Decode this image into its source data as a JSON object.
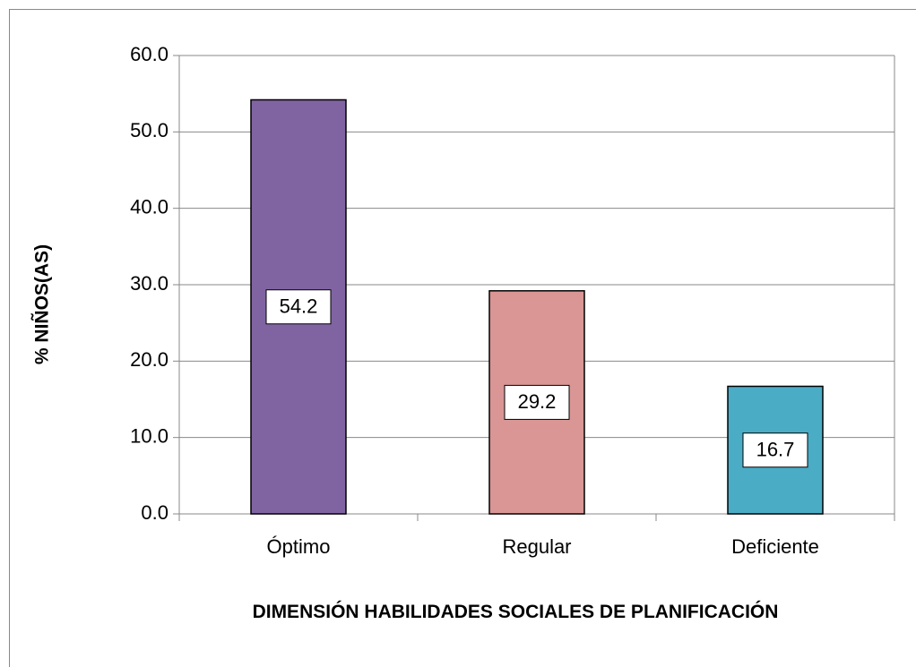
{
  "chart_data": {
    "type": "bar",
    "categories": [
      "Óptimo",
      "Regular",
      "Deficiente"
    ],
    "values": [
      54.2,
      29.2,
      16.7
    ],
    "colors": [
      "#8064a2",
      "#d99694",
      "#4bacc6"
    ],
    "ylabel": "% NIÑOS(AS)",
    "xlabel": "DIMENSIÓN HABILIDADES SOCIALES DE PLANIFICACIÓN",
    "ylim": [
      0,
      60
    ],
    "yticks": [
      {
        "value": 0,
        "label": "0.0"
      },
      {
        "value": 10,
        "label": "10.0"
      },
      {
        "value": 20,
        "label": "20.0"
      },
      {
        "value": 30,
        "label": "30.0"
      },
      {
        "value": 40,
        "label": "40.0"
      },
      {
        "value": 50,
        "label": "50.0"
      },
      {
        "value": 60,
        "label": "60.0"
      }
    ],
    "grid": true
  }
}
